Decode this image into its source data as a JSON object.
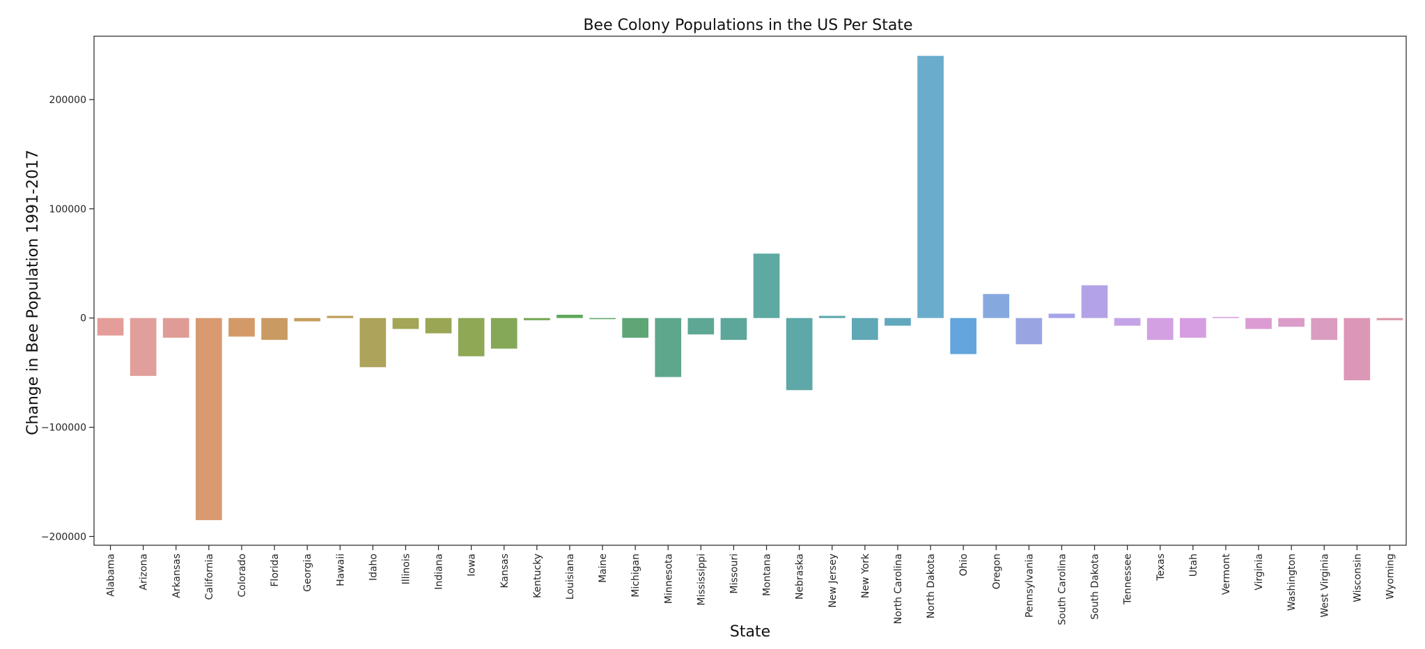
{
  "chart_data": {
    "type": "bar",
    "title": "Bee Colony Populations in the US Per State",
    "xlabel": "State",
    "ylabel": "Change in Bee Population 1991-2017",
    "ylim": [
      -208000,
      258000
    ],
    "yticks": [
      -200000,
      -100000,
      0,
      100000,
      200000
    ],
    "ytick_labels": [
      "−200000",
      "−100000",
      "0",
      "100000",
      "200000"
    ],
    "grid": false,
    "categories": [
      "Alabama",
      "Arizona",
      "Arkansas",
      "California",
      "Colorado",
      "Florida",
      "Georgia",
      "Hawaii",
      "Idaho",
      "Illinois",
      "Indiana",
      "Iowa",
      "Kansas",
      "Kentucky",
      "Louisiana",
      "Maine",
      "Michigan",
      "Minnesota",
      "Mississippi",
      "Missouri",
      "Montana",
      "Nebraska",
      "New Jersey",
      "New York",
      "North Carolina",
      "North Dakota",
      "Ohio",
      "Oregon",
      "Pennsylvania",
      "South Carolina",
      "South Dakota",
      "Tennessee",
      "Texas",
      "Utah",
      "Vermont",
      "Virginia",
      "Washington",
      "West Virginia",
      "Wisconsin",
      "Wyoming"
    ],
    "values": [
      -16000,
      -53000,
      -18000,
      -185000,
      -17000,
      -20000,
      -3000,
      2000,
      -45000,
      -10000,
      -14000,
      -35000,
      -28000,
      -2000,
      3000,
      -1000,
      -18000,
      -54000,
      -15000,
      -20000,
      59000,
      -66000,
      2000,
      -20000,
      -7000,
      240000,
      -33000,
      22000,
      -24000,
      4000,
      30000,
      -7000,
      -20000,
      -18000,
      1000,
      -10000,
      -8000,
      -20000,
      -57000,
      -2000
    ],
    "colors": [
      "#e49d98",
      "#e09f9b",
      "#df9c97",
      "#d99a70",
      "#d39a68",
      "#c99b63",
      "#c69e5f",
      "#ba9e57",
      "#ada35a",
      "#a3a557",
      "#9aa654",
      "#8ea856",
      "#85a858",
      "#76a857",
      "#5fa85c",
      "#61a569",
      "#5ea676",
      "#5ea78c",
      "#5ea795",
      "#5da69a",
      "#5ea9a2",
      "#5ea8a8",
      "#5ea8ad",
      "#60a8b5",
      "#62a8bd",
      "#6aaccc",
      "#63a5dc",
      "#85a9df",
      "#99a5e3",
      "#a5a3e9",
      "#b3a3e6",
      "#c4a3e6",
      "#d3a0e2",
      "#d59ee2",
      "#da9de0",
      "#dc9cd3",
      "#dc9cc9",
      "#da9cc0",
      "#dc97b6",
      "#dc98a9"
    ]
  }
}
